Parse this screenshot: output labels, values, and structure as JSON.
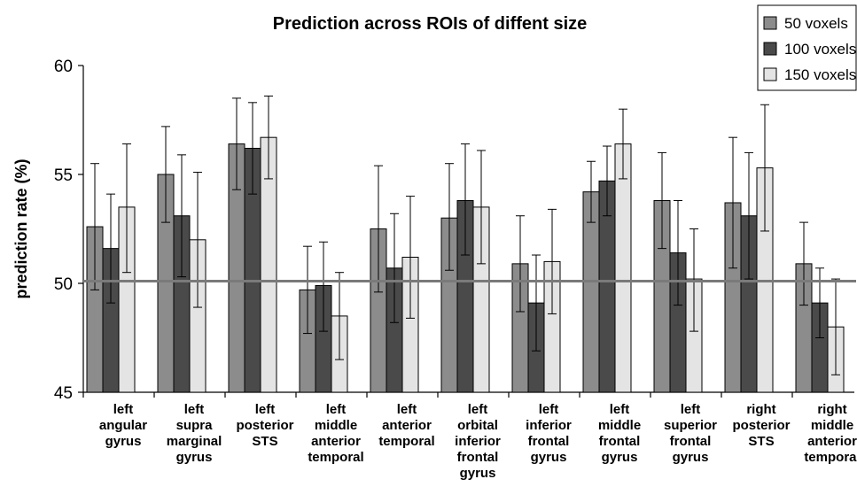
{
  "chart_data": {
    "type": "bar",
    "title": "Prediction across ROIs of diffent size",
    "ylabel": "prediction rate (%)",
    "xlabel": "",
    "ylim": [
      45,
      60
    ],
    "yticks": [
      "45",
      "50",
      "55",
      "60"
    ],
    "reference_line": 50.1,
    "legend_position": "top-right",
    "categories": [
      [
        "left",
        "angular",
        "gyrus"
      ],
      [
        "left",
        "supra",
        "marginal",
        "gyrus"
      ],
      [
        "left",
        "posterior",
        "STS"
      ],
      [
        "left",
        "middle",
        "anterior",
        "temporal"
      ],
      [
        "left",
        "anterior",
        "temporal"
      ],
      [
        "left",
        "orbital",
        "inferior",
        "frontal",
        "gyrus"
      ],
      [
        "left",
        "inferior",
        "frontal",
        "gyrus"
      ],
      [
        "left",
        "middle",
        "frontal",
        "gyrus"
      ],
      [
        "left",
        "superior",
        "frontal",
        "gyrus"
      ],
      [
        "right",
        "posterior",
        "STS"
      ],
      [
        "right",
        "middle",
        "anterior",
        "temporal"
      ]
    ],
    "series": [
      {
        "name": "50 voxels",
        "color": "#8c8c8c",
        "values": [
          52.6,
          55.0,
          56.4,
          49.7,
          52.5,
          53.0,
          50.9,
          54.2,
          53.8,
          53.7,
          50.9
        ],
        "err_low": [
          49.7,
          52.8,
          54.3,
          47.7,
          49.6,
          50.6,
          48.7,
          52.8,
          51.6,
          50.7,
          49.0
        ],
        "err_high": [
          55.5,
          57.2,
          58.5,
          51.7,
          55.4,
          55.5,
          53.1,
          55.6,
          56.0,
          56.7,
          52.8
        ]
      },
      {
        "name": "100 voxels",
        "color": "#4a4a4a",
        "values": [
          51.6,
          53.1,
          56.2,
          49.9,
          50.7,
          53.8,
          49.1,
          54.7,
          51.4,
          53.1,
          49.1
        ],
        "err_low": [
          49.1,
          50.3,
          54.1,
          47.8,
          48.2,
          51.3,
          46.9,
          53.1,
          49.0,
          50.2,
          47.5
        ],
        "err_high": [
          54.1,
          55.9,
          58.3,
          51.9,
          53.2,
          56.4,
          51.3,
          56.3,
          53.8,
          56.0,
          50.7
        ]
      },
      {
        "name": "150 voxels",
        "color": "#e4e4e4",
        "values": [
          53.5,
          52.0,
          56.7,
          48.5,
          51.2,
          53.5,
          51.0,
          56.4,
          50.2,
          55.3,
          48.0
        ],
        "err_low": [
          50.5,
          48.9,
          54.8,
          46.5,
          48.4,
          50.9,
          48.6,
          54.8,
          47.8,
          52.4,
          45.8
        ],
        "err_high": [
          56.4,
          55.1,
          58.6,
          50.5,
          54.0,
          56.1,
          53.4,
          58.0,
          52.5,
          58.2,
          50.2
        ]
      }
    ]
  }
}
